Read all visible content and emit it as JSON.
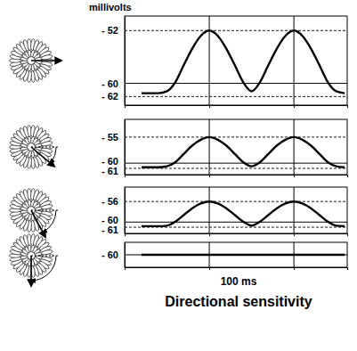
{
  "chart_data": [
    {
      "type": "line",
      "y_label": "millivolts",
      "x": [
        20,
        30,
        40,
        50,
        60,
        70,
        80,
        90,
        100,
        110,
        120,
        130,
        140,
        150,
        160,
        170,
        180,
        190,
        200,
        210,
        220,
        230,
        240,
        250,
        260
      ],
      "series": [
        {
          "color": "#000000",
          "values": [
            -61.5,
            -61.5,
            -61.5,
            -61.2,
            -59.8,
            -57.2,
            -54.7,
            -52.8,
            -52,
            -52.8,
            -54.7,
            -57.2,
            -59.8,
            -61.2,
            -59.8,
            -57.2,
            -54.7,
            -52.8,
            -52,
            -52.8,
            -54.7,
            -57.2,
            -59.8,
            -61.2,
            -61.5
          ]
        }
      ],
      "xlim": [
        0,
        263
      ],
      "xticks": [
        100,
        200
      ],
      "ylim": [
        -63.3,
        -49.8
      ],
      "yticks": [
        {
          "value": -52,
          "label": "- 52"
        },
        {
          "value": -60,
          "label": "- 60"
        },
        {
          "value": -62,
          "label": "- 62"
        }
      ],
      "grid": true,
      "tick_labels": "y"
    },
    {
      "type": "line",
      "x": [
        20,
        30,
        40,
        50,
        60,
        70,
        80,
        90,
        100,
        110,
        120,
        130,
        140,
        150,
        160,
        170,
        180,
        190,
        200,
        210,
        220,
        230,
        240,
        250,
        260
      ],
      "series": [
        {
          "color": "#000000",
          "values": [
            -60.8,
            -60.8,
            -60.8,
            -60.6,
            -59.8,
            -58.2,
            -56.6,
            -55.5,
            -55,
            -55.5,
            -56.6,
            -58.2,
            -59.8,
            -60.6,
            -59.8,
            -58.2,
            -56.6,
            -55.5,
            -55,
            -55.5,
            -56.6,
            -58.2,
            -59.8,
            -60.6,
            -60.8
          ]
        }
      ],
      "xlim": [
        0,
        263
      ],
      "xticks": [
        100,
        200
      ],
      "ylim": [
        -62.2,
        -51.6
      ],
      "yticks": [
        {
          "value": -55,
          "label": "- 55"
        },
        {
          "value": -60,
          "label": "- 60"
        },
        {
          "value": -61,
          "label": "- 61"
        }
      ],
      "grid": true,
      "tick_labels": "y"
    },
    {
      "type": "line",
      "x": [
        20,
        30,
        40,
        50,
        60,
        70,
        80,
        90,
        100,
        110,
        120,
        130,
        140,
        150,
        160,
        170,
        180,
        190,
        200,
        210,
        220,
        230,
        240,
        250,
        260
      ],
      "series": [
        {
          "color": "#000000",
          "values": [
            -60.8,
            -60.8,
            -60.8,
            -60.7,
            -59.9,
            -58.6,
            -57.3,
            -56.4,
            -56,
            -56.4,
            -57.3,
            -58.6,
            -59.9,
            -60.7,
            -59.9,
            -58.6,
            -57.3,
            -56.4,
            -56,
            -56.4,
            -57.3,
            -58.6,
            -59.9,
            -60.7,
            -60.8
          ]
        }
      ],
      "xlim": [
        0,
        263
      ],
      "xticks": [
        100,
        200
      ],
      "ylim": [
        -62.2,
        -53.2
      ],
      "yticks": [
        {
          "value": -56,
          "label": "- 56"
        },
        {
          "value": -60,
          "label": "- 60"
        },
        {
          "value": -61,
          "label": "- 61"
        }
      ],
      "grid": true,
      "tick_labels": "y"
    },
    {
      "type": "line",
      "title": "Directional sensitivity",
      "x_label": "100 ms",
      "x": [
        20,
        30,
        40,
        50,
        60,
        70,
        80,
        90,
        100,
        110,
        120,
        130,
        140,
        150,
        160,
        170,
        180,
        190,
        200,
        210,
        220,
        230,
        240,
        250,
        260
      ],
      "series": [
        {
          "color": "#000000",
          "values": [
            -60,
            -60,
            -60,
            -60,
            -60,
            -60,
            -60,
            -60,
            -60,
            -60,
            -60,
            -60,
            -60,
            -60,
            -60,
            -60,
            -60,
            -60,
            -60,
            -60,
            -60,
            -60,
            -60,
            -60,
            -60
          ]
        }
      ],
      "xlim": [
        0,
        263
      ],
      "xticks": [
        100,
        200
      ],
      "ylim": [
        -61.5,
        -58.5
      ],
      "yticks": [
        {
          "value": -60,
          "label": "- 60"
        }
      ],
      "grid": true,
      "tick_labels": "y"
    }
  ]
}
